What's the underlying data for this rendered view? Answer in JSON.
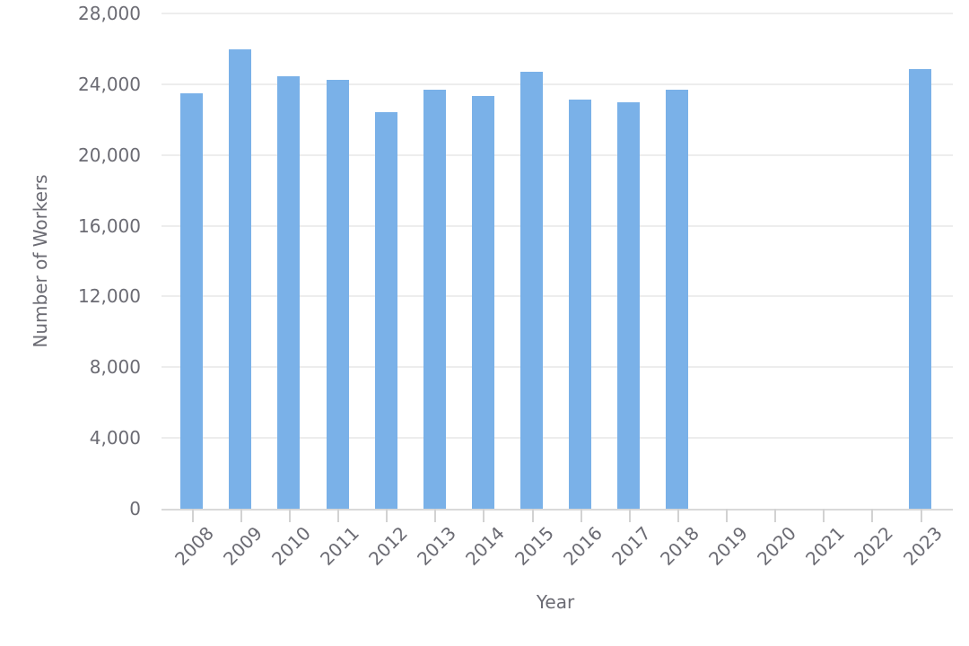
{
  "chart_data": {
    "type": "bar",
    "title": "",
    "xlabel": "Year",
    "ylabel": "Number of Workers",
    "categories": [
      "2008",
      "2009",
      "2010",
      "2011",
      "2012",
      "2013",
      "2014",
      "2015",
      "2016",
      "2017",
      "2018",
      "2019",
      "2020",
      "2021",
      "2022",
      "2023"
    ],
    "values": [
      23500,
      25950,
      24450,
      24250,
      22400,
      23700,
      23350,
      24700,
      23150,
      23000,
      23700,
      0,
      0,
      0,
      0,
      24850
    ],
    "ylim": [
      0,
      28000
    ],
    "ytick_interval": 4000,
    "y_ticks": [
      {
        "value": 0,
        "label": "0"
      },
      {
        "value": 4000,
        "label": "4,000"
      },
      {
        "value": 8000,
        "label": "8,000"
      },
      {
        "value": 12000,
        "label": "12,000"
      },
      {
        "value": 16000,
        "label": "16,000"
      },
      {
        "value": 20000,
        "label": "20,000"
      },
      {
        "value": 24000,
        "label": "24,000"
      },
      {
        "value": 28000,
        "label": "28,000"
      }
    ],
    "grid": true,
    "legend": "none",
    "colors": {
      "bar": "#7ab1e8",
      "gridline": "#ededed",
      "axis_line": "#d9d9d9",
      "tick": "#d2d2d2",
      "text": "#6b6b73"
    }
  }
}
